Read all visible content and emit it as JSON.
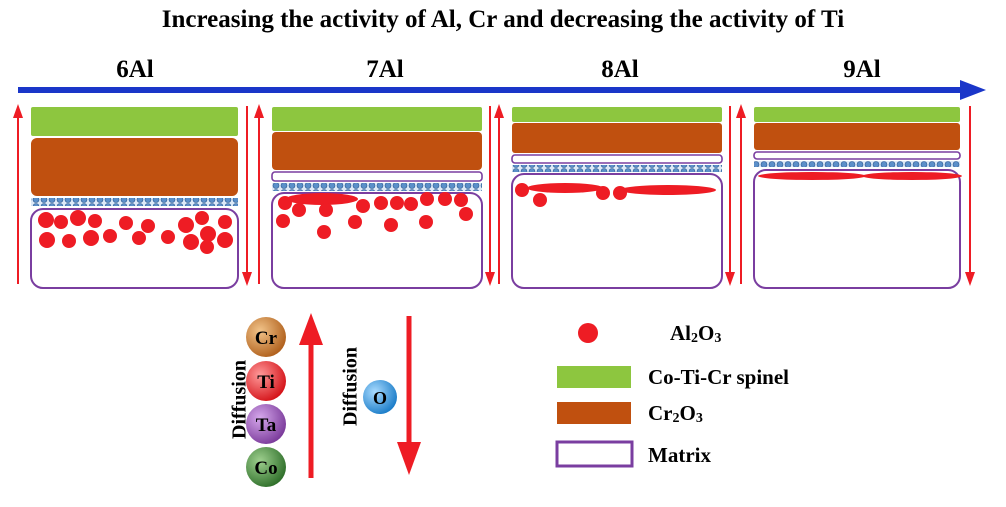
{
  "title": "Increasing the activity of Al, Cr and decreasing the activity of Ti",
  "stages": [
    {
      "label": "6Al"
    },
    {
      "label": "7Al"
    },
    {
      "label": "8Al"
    },
    {
      "label": "9Al"
    }
  ],
  "diffusion": {
    "outward_label": "Diffusion",
    "outward_elements": [
      "Cr",
      "Ti",
      "Ta",
      "Co"
    ],
    "inward_label": "Diffusion",
    "inward_elements": [
      "O"
    ]
  },
  "legend": {
    "al2o3": {
      "main": "Al",
      "sub": "2",
      "rest": "O",
      "sub2": "3"
    },
    "spinel": "Co-Ti-Cr spinel",
    "cr2o3": {
      "main": "Cr",
      "sub": "2",
      "rest": "O",
      "sub2": "3"
    },
    "matrix": "Matrix"
  },
  "colors": {
    "arrow_blue": "#1a36c9",
    "spinel_green": "#8dc63f",
    "cr2o3_brown": "#c0500f",
    "matrix_purple": "#7a3ea0",
    "al2o3_red": "#ee1c24",
    "blue_beads": "#5b8fc9",
    "cr_ball": "#c07830",
    "ti_ball": "#e8292e",
    "ta_ball": "#8a4fa8",
    "co_ball": "#3f8a3a",
    "o_ball": "#2a8fd8"
  }
}
